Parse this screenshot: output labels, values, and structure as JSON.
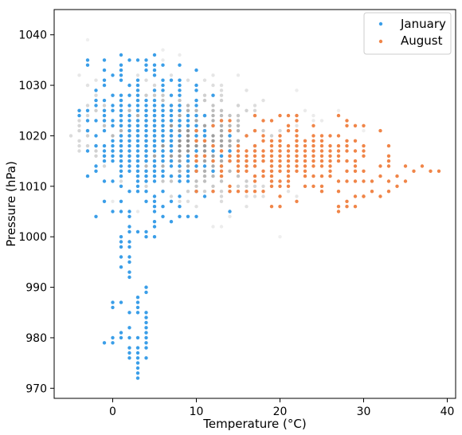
{
  "chart_data": {
    "type": "scatter",
    "xlabel": "Temperature (°C)",
    "ylabel": "Pressure (hPa)",
    "xlim": [
      -7,
      41
    ],
    "ylim": [
      968,
      1045
    ],
    "xticks": [
      0,
      10,
      20,
      30,
      40
    ],
    "yticks": [
      970,
      980,
      990,
      1000,
      1010,
      1020,
      1030,
      1040
    ],
    "grid": false,
    "legend": {
      "placement": "top-right"
    },
    "background_points": {
      "description_color": "#808080",
      "x_range": [
        -5,
        37
      ],
      "y_range": [
        1000,
        1041
      ]
    },
    "series": [
      {
        "name": "January",
        "color": "#3a9ee8",
        "points": [
          [
            -1,
            979
          ],
          [
            0,
            979
          ],
          [
            0,
            980
          ],
          [
            1,
            980
          ],
          [
            1,
            981
          ],
          [
            2,
            982
          ],
          [
            2,
            980
          ],
          [
            3,
            980
          ],
          [
            3,
            978
          ],
          [
            3,
            977
          ],
          [
            4,
            979
          ],
          [
            4,
            981
          ],
          [
            4,
            983
          ],
          [
            2,
            976
          ],
          [
            2,
            977
          ],
          [
            3,
            975
          ],
          [
            3,
            974
          ],
          [
            3,
            973
          ],
          [
            3,
            972
          ],
          [
            3,
            976
          ],
          [
            2,
            978
          ],
          [
            4,
            976
          ],
          [
            4,
            978
          ],
          [
            4,
            980
          ],
          [
            4,
            982
          ],
          [
            4,
            984
          ],
          [
            0,
            986
          ],
          [
            0,
            987
          ],
          [
            1,
            987
          ],
          [
            3,
            986
          ],
          [
            3,
            985
          ],
          [
            4,
            985
          ],
          [
            2,
            985
          ],
          [
            4,
            990
          ],
          [
            4,
            989
          ],
          [
            3,
            988
          ],
          [
            3,
            987
          ],
          [
            2,
            992
          ],
          [
            2,
            993
          ],
          [
            2,
            995
          ],
          [
            2,
            996
          ],
          [
            1,
            994
          ],
          [
            1,
            996
          ],
          [
            2,
            998
          ],
          [
            2,
            999
          ],
          [
            1,
            1000
          ],
          [
            1,
            999
          ],
          [
            1,
            998
          ],
          [
            2,
            1001
          ],
          [
            2,
            1002
          ],
          [
            3,
            1001
          ],
          [
            4,
            1000
          ],
          [
            4,
            1001
          ],
          [
            5,
            1000
          ],
          [
            5,
            1002
          ],
          [
            5,
            1003
          ]
        ]
      },
      {
        "name": "August",
        "color": "#f08548",
        "points": [
          [
            27,
            1005
          ],
          [
            27,
            1006
          ],
          [
            28,
            1007
          ],
          [
            29,
            1008
          ],
          [
            30,
            1008
          ],
          [
            32,
            1008
          ],
          [
            31,
            1009
          ],
          [
            33,
            1009
          ],
          [
            34,
            1010
          ],
          [
            35,
            1011
          ],
          [
            36,
            1013
          ],
          [
            37,
            1014
          ],
          [
            38,
            1013
          ],
          [
            39,
            1013
          ],
          [
            35,
            1014
          ],
          [
            34,
            1012
          ],
          [
            33,
            1011
          ]
        ]
      }
    ]
  }
}
